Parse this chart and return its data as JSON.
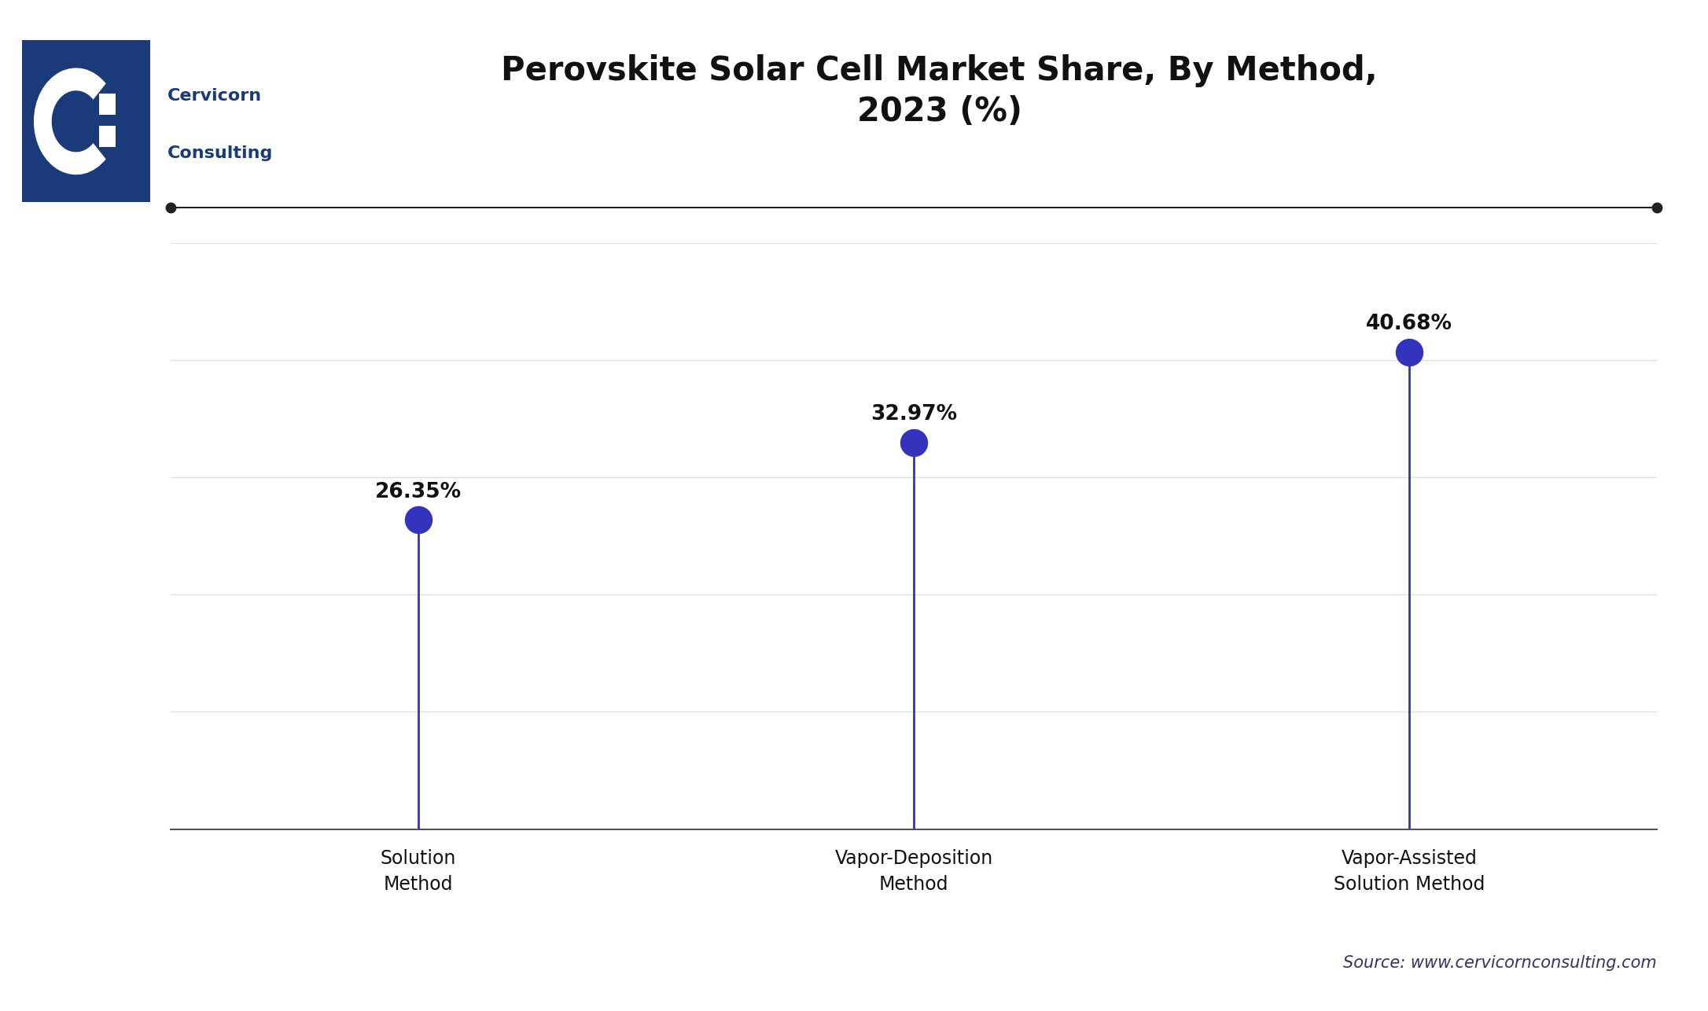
{
  "title": "Perovskite Solar Cell Market Share, By Method,\n2023 (%)",
  "categories": [
    "Solution\nMethod",
    "Vapor-Deposition\nMethod",
    "Vapor-Assisted\nSolution Method"
  ],
  "values": [
    26.35,
    32.97,
    40.68
  ],
  "labels": [
    "26.35%",
    "32.97%",
    "40.68%"
  ],
  "stem_color": "#3333bb",
  "dot_color": "#3333bb",
  "title_color": "#111111",
  "background_color": "#ffffff",
  "grid_color": "#e0e0e0",
  "source_text": "Source: www.cervicornconsulting.com",
  "top_line_color": "#222222",
  "title_fontsize": 30,
  "label_fontsize": 19,
  "tick_fontsize": 17,
  "source_fontsize": 15,
  "ylim": [
    0,
    50
  ],
  "dot_size": 600,
  "logo_bg_color": "#1a3a7a",
  "logo_text_color": "#1a3a7a",
  "cervicorn_text": "Cervicorn",
  "consulting_text": "Consulting"
}
